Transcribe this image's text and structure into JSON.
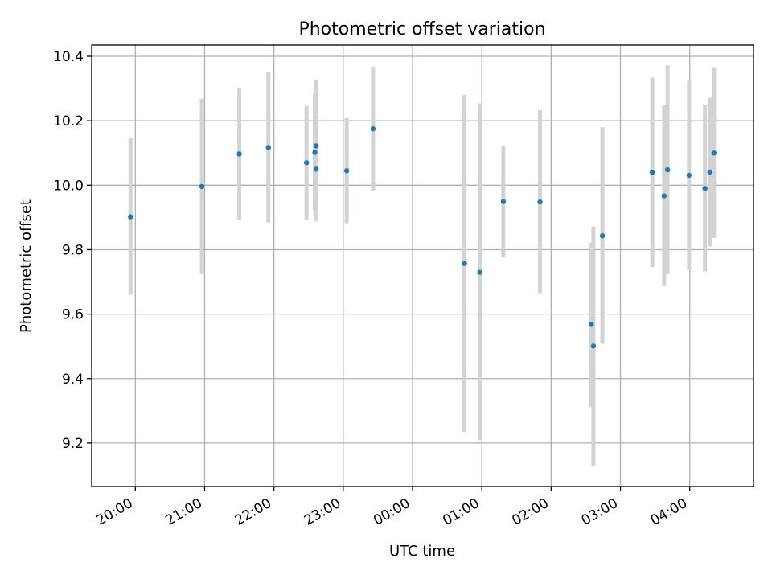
{
  "chart_data": {
    "type": "scatter",
    "title": "Photometric offset variation",
    "xlabel": "UTC time",
    "ylabel": "Photometric offset",
    "x_unit": "UTC hours, continuing past 24:00 after midnight",
    "xlim": [
      19.37,
      28.92
    ],
    "ylim": [
      9.065,
      10.435
    ],
    "x_ticks": [
      {
        "value": 20,
        "label": "20:00"
      },
      {
        "value": 21,
        "label": "21:00"
      },
      {
        "value": 22,
        "label": "22:00"
      },
      {
        "value": 23,
        "label": "23:00"
      },
      {
        "value": 24,
        "label": "00:00"
      },
      {
        "value": 25,
        "label": "01:00"
      },
      {
        "value": 26,
        "label": "02:00"
      },
      {
        "value": 27,
        "label": "03:00"
      },
      {
        "value": 28,
        "label": "04:00"
      }
    ],
    "y_ticks": [
      {
        "value": 9.2,
        "label": "9.2"
      },
      {
        "value": 9.4,
        "label": "9.4"
      },
      {
        "value": 9.6,
        "label": "9.6"
      },
      {
        "value": 9.8,
        "label": "9.8"
      },
      {
        "value": 10.0,
        "label": "10.0"
      },
      {
        "value": 10.2,
        "label": "10.2"
      },
      {
        "value": 10.4,
        "label": "10.4"
      }
    ],
    "grid": true,
    "marker_color": "#1f77b4",
    "errorbar_color": "#d3d3d3",
    "points": [
      {
        "x": 19.93,
        "y": 9.902,
        "low": 9.66,
        "high": 10.147
      },
      {
        "x": 20.96,
        "y": 9.996,
        "low": 9.724,
        "high": 10.268
      },
      {
        "x": 21.5,
        "y": 10.097,
        "low": 9.893,
        "high": 10.302
      },
      {
        "x": 21.92,
        "y": 10.117,
        "low": 9.884,
        "high": 10.35
      },
      {
        "x": 22.47,
        "y": 10.07,
        "low": 9.893,
        "high": 10.247
      },
      {
        "x": 22.59,
        "y": 10.102,
        "low": 9.92,
        "high": 10.284
      },
      {
        "x": 22.61,
        "y": 10.122,
        "low": 9.917,
        "high": 10.327
      },
      {
        "x": 22.61,
        "y": 10.05,
        "low": 9.888,
        "high": 10.212
      },
      {
        "x": 23.05,
        "y": 10.045,
        "low": 9.882,
        "high": 10.208
      },
      {
        "x": 23.43,
        "y": 10.175,
        "low": 9.982,
        "high": 10.368
      },
      {
        "x": 24.75,
        "y": 9.757,
        "low": 9.235,
        "high": 10.28
      },
      {
        "x": 24.97,
        "y": 9.73,
        "low": 9.209,
        "high": 10.254
      },
      {
        "x": 25.31,
        "y": 9.949,
        "low": 9.776,
        "high": 10.122
      },
      {
        "x": 25.84,
        "y": 9.948,
        "low": 9.665,
        "high": 10.233
      },
      {
        "x": 26.58,
        "y": 9.568,
        "low": 9.312,
        "high": 9.822
      },
      {
        "x": 26.61,
        "y": 9.501,
        "low": 9.13,
        "high": 9.872
      },
      {
        "x": 26.74,
        "y": 9.843,
        "low": 9.508,
        "high": 10.18
      },
      {
        "x": 27.46,
        "y": 10.04,
        "low": 9.746,
        "high": 10.334
      },
      {
        "x": 27.63,
        "y": 9.967,
        "low": 9.686,
        "high": 10.248
      },
      {
        "x": 27.68,
        "y": 10.048,
        "low": 9.724,
        "high": 10.372
      },
      {
        "x": 27.99,
        "y": 10.031,
        "low": 9.738,
        "high": 10.324
      },
      {
        "x": 28.22,
        "y": 9.99,
        "low": 9.732,
        "high": 10.248
      },
      {
        "x": 28.29,
        "y": 10.041,
        "low": 9.81,
        "high": 10.272
      },
      {
        "x": 28.35,
        "y": 10.1,
        "low": 9.836,
        "high": 10.366
      }
    ]
  }
}
